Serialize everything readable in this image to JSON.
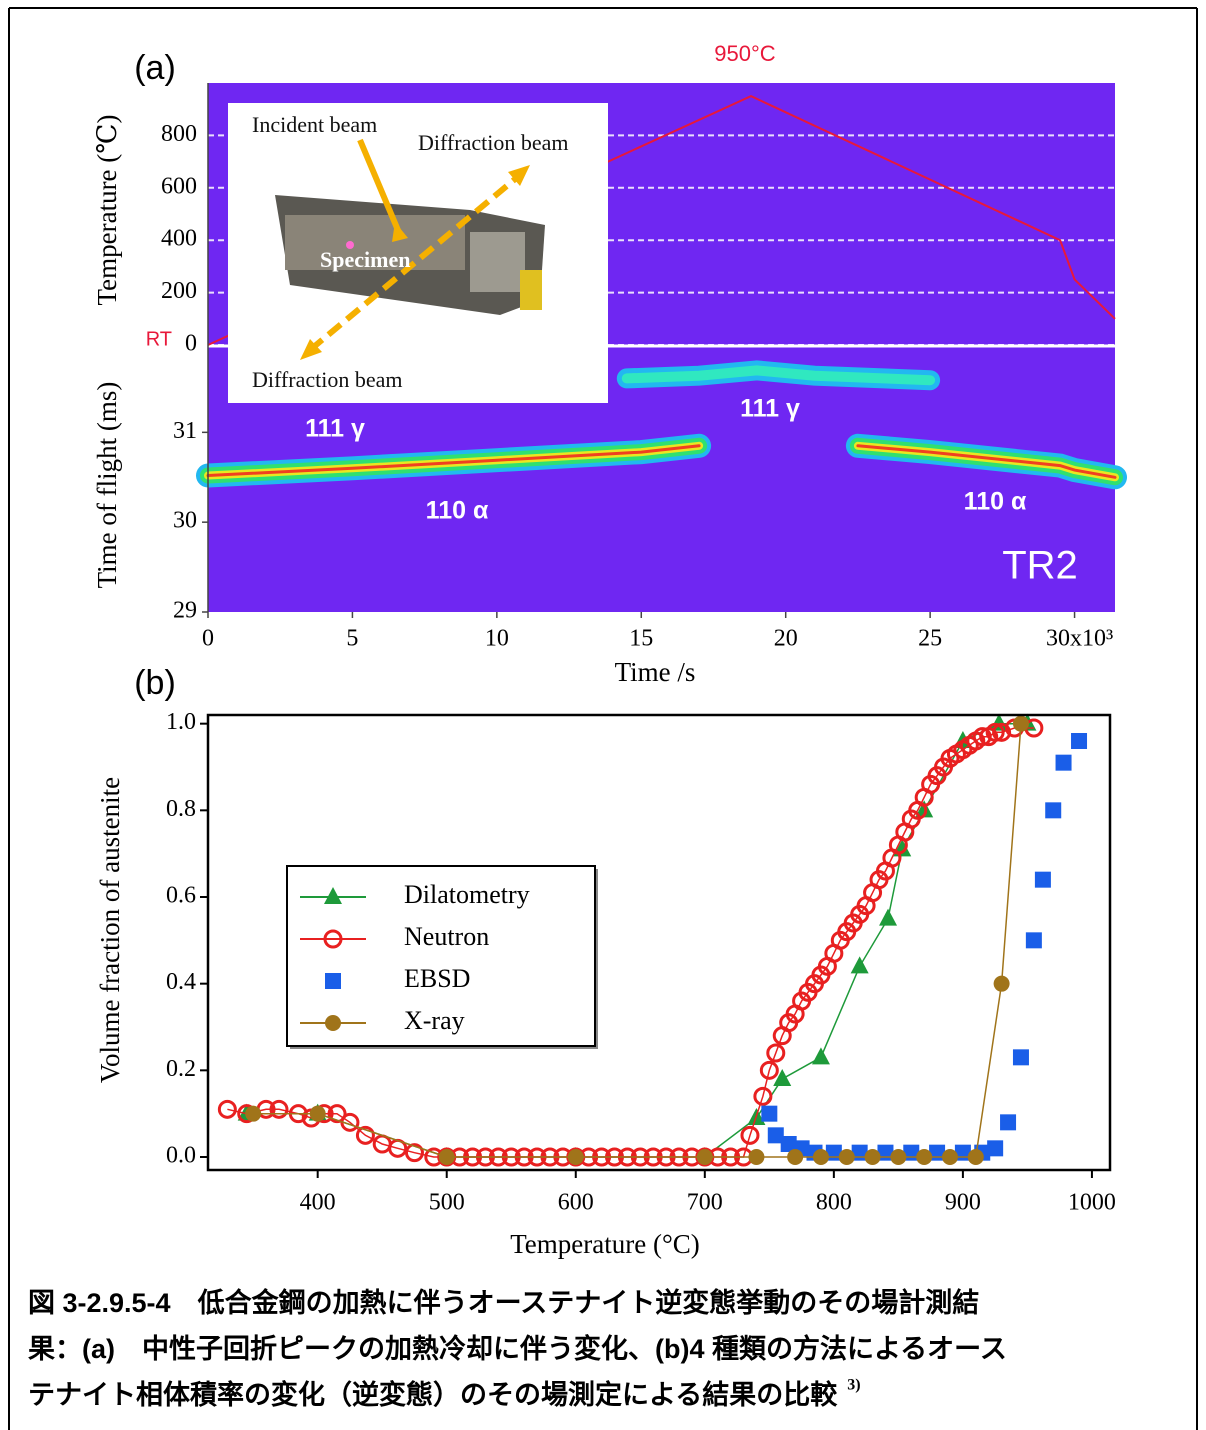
{
  "chart_data": [
    {
      "type": "line",
      "panel_label": "(a)",
      "xlabel": "Time /s",
      "xlim": [
        0,
        31.4
      ],
      "xticks": [
        0,
        5,
        10,
        15,
        20,
        25,
        {
          "value": 30,
          "label": "30x10³"
        }
      ],
      "ylabel": "Temperature (℃)",
      "ylim": [
        0,
        1000
      ],
      "yticks": [
        0,
        200,
        400,
        600,
        800
      ],
      "grid": true,
      "y2label": "Time of flight (ms)",
      "y2lim": [
        29,
        31.95
      ],
      "y2ticks": [
        29,
        30,
        31
      ],
      "annotations": [
        "950°C",
        "RT",
        "TR2"
      ],
      "inset": {
        "labels": [
          "Incident beam",
          "Diffraction beam",
          "Specimen",
          "Diffraction beam"
        ]
      },
      "series": [
        {
          "color": "#e8183a",
          "x": [
            0,
            18.8,
            29.5,
            30,
            31.4
          ],
          "values": [
            0,
            950,
            400,
            250,
            100
          ]
        },
        {
          "name": "110 α",
          "axis": "y2",
          "color": "#e8e820",
          "x": [
            0,
            5,
            10,
            15,
            17,
            20,
            22.5,
            25,
            29.5,
            30,
            31.4
          ],
          "values": [
            30.52,
            30.6,
            30.69,
            30.78,
            30.85,
            null,
            30.85,
            30.78,
            30.63,
            30.58,
            30.5
          ]
        },
        {
          "name": "111 γ",
          "axis": "y2",
          "color": "#30e8c0",
          "x": [
            14.5,
            17,
            19,
            21,
            25
          ],
          "values": [
            31.6,
            31.63,
            31.69,
            31.63,
            31.58
          ]
        }
      ]
    },
    {
      "type": "line",
      "panel_label": "(b)",
      "xlabel": "Temperature (°C)",
      "ylabel": "Volume fraction of austenite",
      "xlim": [
        315,
        1014
      ],
      "xticks": [
        400,
        500,
        600,
        700,
        800,
        900,
        1000
      ],
      "ylim": [
        -0.03,
        1.02
      ],
      "yticks": [
        {
          "value": 0,
          "label": "0.0"
        },
        {
          "value": 0.2,
          "label": "0.2"
        },
        {
          "value": 0.4,
          "label": "0.4"
        },
        {
          "value": 0.6,
          "label": "0.6"
        },
        {
          "value": 0.8,
          "label": "0.8"
        },
        {
          "value": 1,
          "label": "1.0"
        }
      ],
      "legend": "left",
      "series": [
        {
          "name": "Dilatometry",
          "color": "#1e9a3a",
          "marker": "triangle",
          "line": true,
          "x": [
            345,
            400,
            500,
            600,
            700,
            740,
            760,
            790,
            820,
            842,
            853,
            870,
            900,
            928,
            950
          ],
          "values": [
            0.1,
            0.1,
            0,
            0,
            0,
            0.09,
            0.18,
            0.23,
            0.44,
            0.55,
            0.71,
            0.8,
            0.96,
            1,
            1
          ]
        },
        {
          "name": "Neutron",
          "color": "#e82020",
          "marker": "circle-open",
          "line": true,
          "x": [
            330,
            345,
            360,
            370,
            385,
            395,
            405,
            415,
            425,
            437,
            450,
            462,
            475,
            490,
            500,
            510,
            520,
            530,
            540,
            550,
            560,
            570,
            580,
            590,
            600,
            610,
            620,
            630,
            640,
            650,
            660,
            670,
            680,
            690,
            700,
            710,
            720,
            730,
            735,
            745,
            750,
            755,
            760,
            765,
            770,
            775,
            780,
            785,
            790,
            795,
            800,
            805,
            810,
            815,
            820,
            825,
            830,
            835,
            840,
            845,
            850,
            855,
            860,
            865,
            870,
            875,
            880,
            885,
            890,
            895,
            900,
            905,
            910,
            915,
            920,
            925,
            930,
            940,
            955
          ],
          "values": [
            0.11,
            0.1,
            0.11,
            0.11,
            0.1,
            0.09,
            0.1,
            0.1,
            0.08,
            0.05,
            0.03,
            0.02,
            0.01,
            0,
            0,
            0,
            0,
            0,
            0,
            0,
            0,
            0,
            0,
            0,
            0,
            0,
            0,
            0,
            0,
            0,
            0,
            0,
            0,
            0,
            0,
            0,
            0,
            0,
            0.05,
            0.14,
            0.2,
            0.24,
            0.28,
            0.31,
            0.33,
            0.36,
            0.38,
            0.4,
            0.42,
            0.44,
            0.47,
            0.5,
            0.52,
            0.54,
            0.56,
            0.58,
            0.61,
            0.64,
            0.66,
            0.69,
            0.72,
            0.75,
            0.78,
            0.8,
            0.83,
            0.86,
            0.88,
            0.9,
            0.92,
            0.93,
            0.94,
            0.95,
            0.96,
            0.97,
            0.97,
            0.98,
            0.98,
            0.99,
            0.99
          ]
        },
        {
          "name": "EBSD",
          "color": "#1a5ee8",
          "marker": "square",
          "line": false,
          "x": [
            750,
            755,
            765,
            775,
            785,
            800,
            820,
            840,
            860,
            880,
            900,
            915,
            925,
            935,
            945,
            955,
            962,
            970,
            978,
            990
          ],
          "values": [
            0.1,
            0.05,
            0.03,
            0.02,
            0.01,
            0.01,
            0.01,
            0.01,
            0.01,
            0.01,
            0.01,
            0.01,
            0.02,
            0.08,
            0.23,
            0.5,
            0.64,
            0.8,
            0.91,
            0.96
          ]
        },
        {
          "name": "X-ray",
          "color": "#a0741a",
          "marker": "circle",
          "line": true,
          "x": [
            350,
            400,
            500,
            600,
            700,
            740,
            770,
            790,
            810,
            830,
            850,
            870,
            890,
            910,
            930,
            945
          ],
          "values": [
            0.1,
            0.1,
            0,
            0,
            0,
            0,
            0,
            0,
            0,
            0,
            0,
            0,
            0,
            0,
            0.4,
            1
          ]
        }
      ]
    }
  ],
  "caption": {
    "lines": [
      "図 3-2.9.5-4　低合金鋼の加熱に伴うオーステナイト逆変態挙動のその場計測結",
      "果：(a)　中性子回折ピークの加熱冷却に伴う変化、(b)4 種類の方法によるオース",
      "テナイト相体積率の変化（逆変態）のその場測定による結果の比較"
    ],
    "reference": "3)"
  }
}
